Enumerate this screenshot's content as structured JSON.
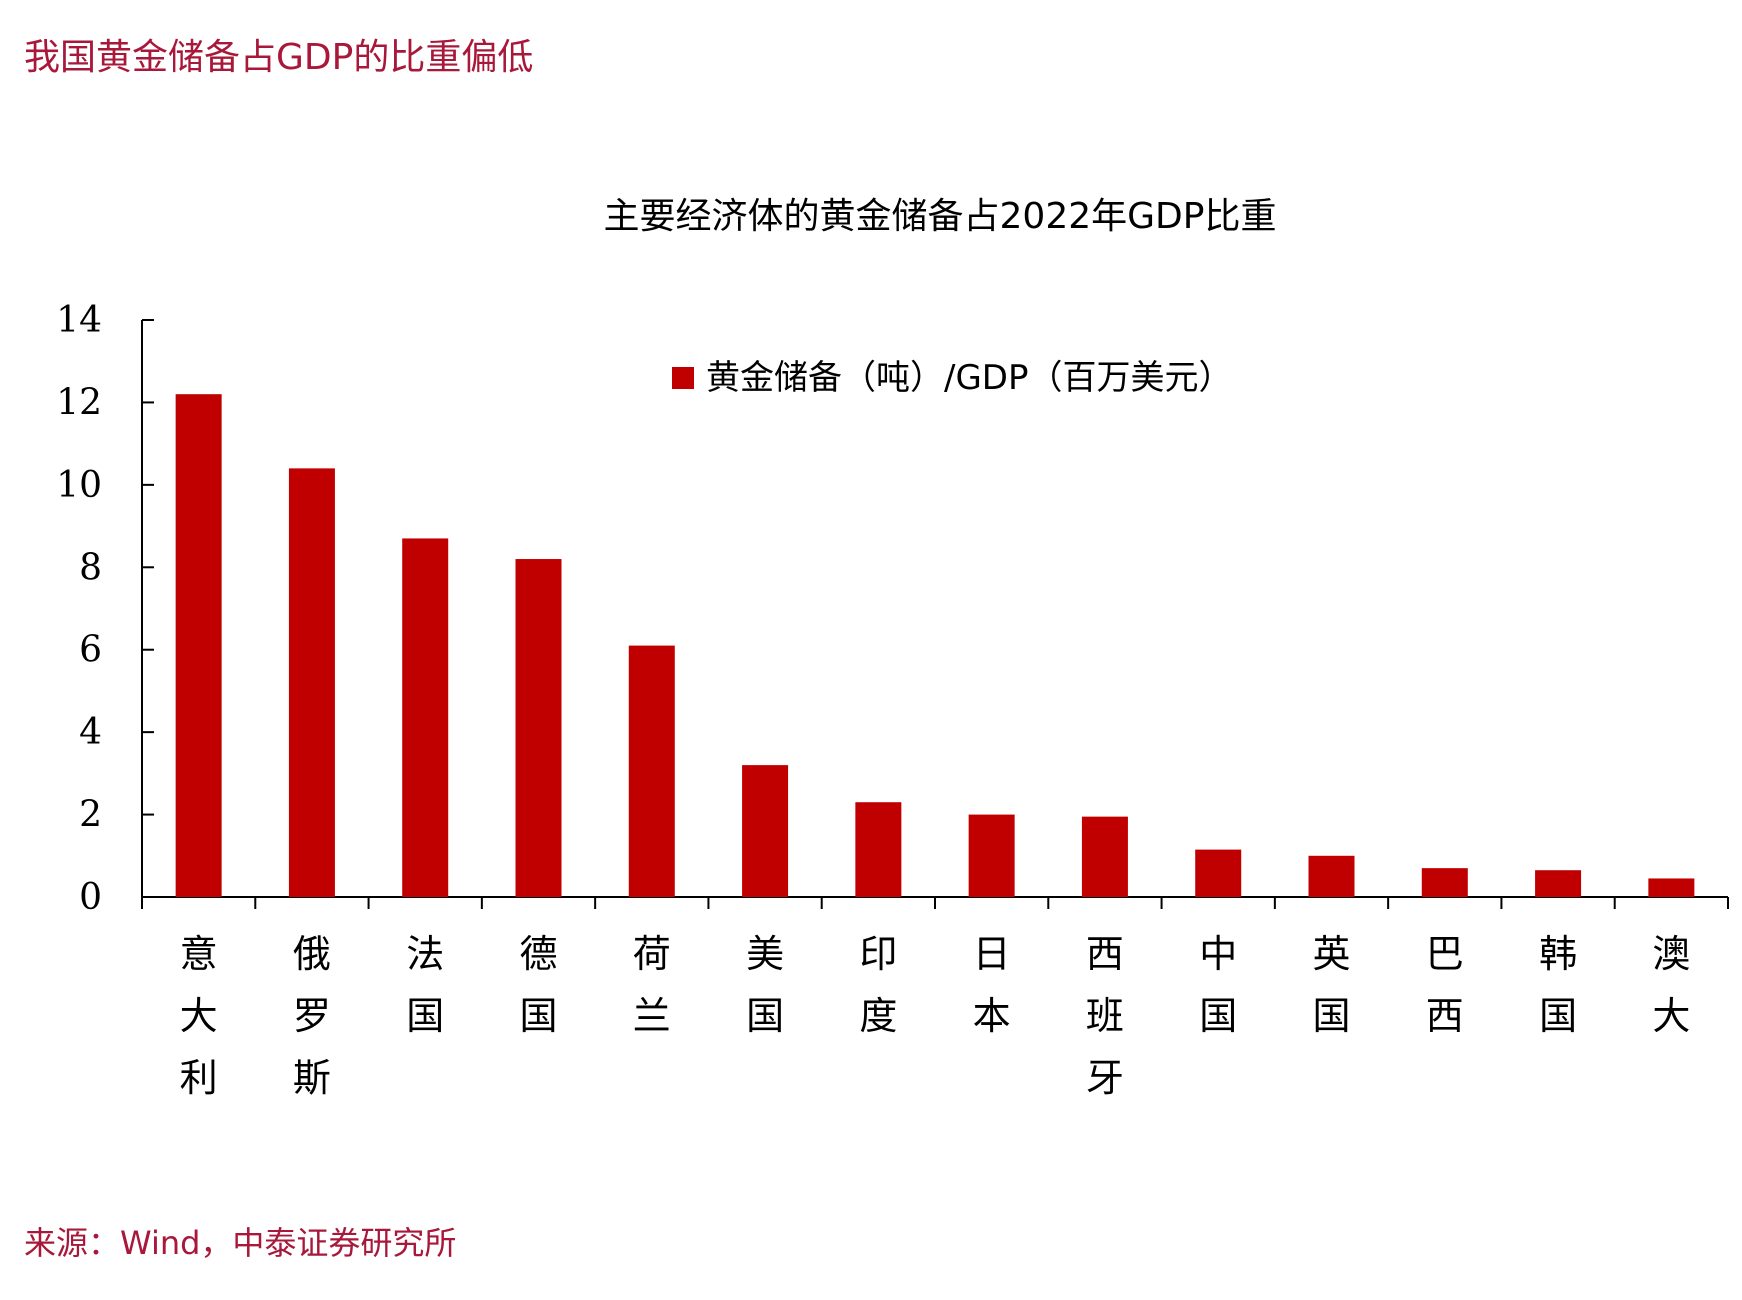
{
  "page": {
    "heading": "我国黄金储备占GDP的比重偏低",
    "source": "来源：Wind，中泰证券研究所"
  },
  "chart_data": {
    "type": "bar",
    "title": "主要经济体的黄金储备占2022年GDP比重",
    "xlabel": "",
    "ylabel": "",
    "ylim": [
      0,
      14
    ],
    "yticks": [
      0,
      2,
      4,
      6,
      8,
      10,
      12,
      14
    ],
    "grid": false,
    "legend_position": "top-center",
    "bar_color": "#c00000",
    "categories": [
      "意大利",
      "俄罗斯",
      "法国",
      "德国",
      "荷兰",
      "美国",
      "印度",
      "日本",
      "西班牙",
      "中国",
      "英国",
      "巴西",
      "韩国",
      "澳大"
    ],
    "series": [
      {
        "name": "黄金储备（吨）/GDP（百万美元）",
        "values": [
          12.2,
          10.4,
          8.7,
          8.2,
          6.1,
          3.2,
          2.3,
          2.0,
          1.95,
          1.15,
          1.0,
          0.7,
          0.65,
          0.45
        ]
      }
    ]
  }
}
